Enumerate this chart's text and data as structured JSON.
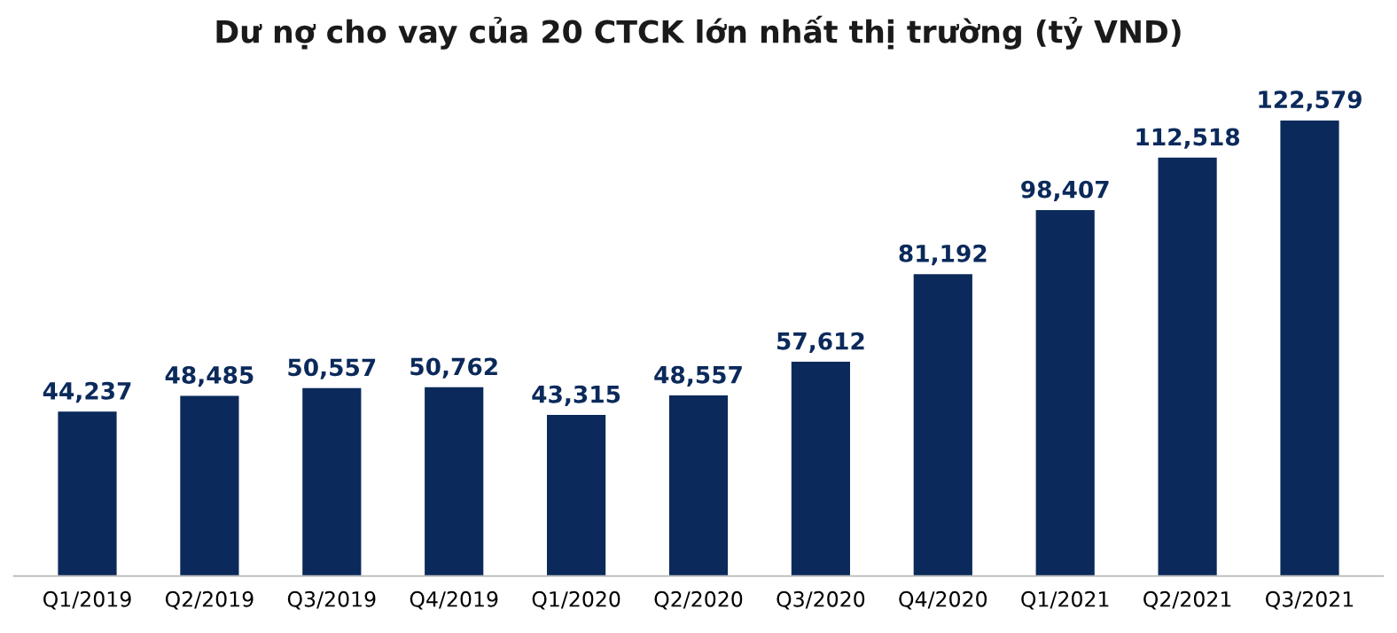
{
  "chart_data": {
    "type": "bar",
    "title": "Dư nợ cho vay của 20 CTCK lớn nhất thị trường (tỷ VND)",
    "categories": [
      "Q1/2019",
      "Q2/2019",
      "Q3/2019",
      "Q4/2019",
      "Q1/2020",
      "Q2/2020",
      "Q3/2020",
      "Q4/2020",
      "Q1/2021",
      "Q2/2021",
      "Q3/2021"
    ],
    "values": [
      44237,
      48485,
      50557,
      50762,
      43315,
      48557,
      57612,
      81192,
      98407,
      112518,
      122579
    ],
    "value_labels": [
      "44,237",
      "48,485",
      "50,557",
      "50,762",
      "43,315",
      "48,557",
      "57,612",
      "81,192",
      "98,407",
      "112,518",
      "122,579"
    ],
    "color": "#0b2a5b",
    "grid": false,
    "legend": false
  }
}
